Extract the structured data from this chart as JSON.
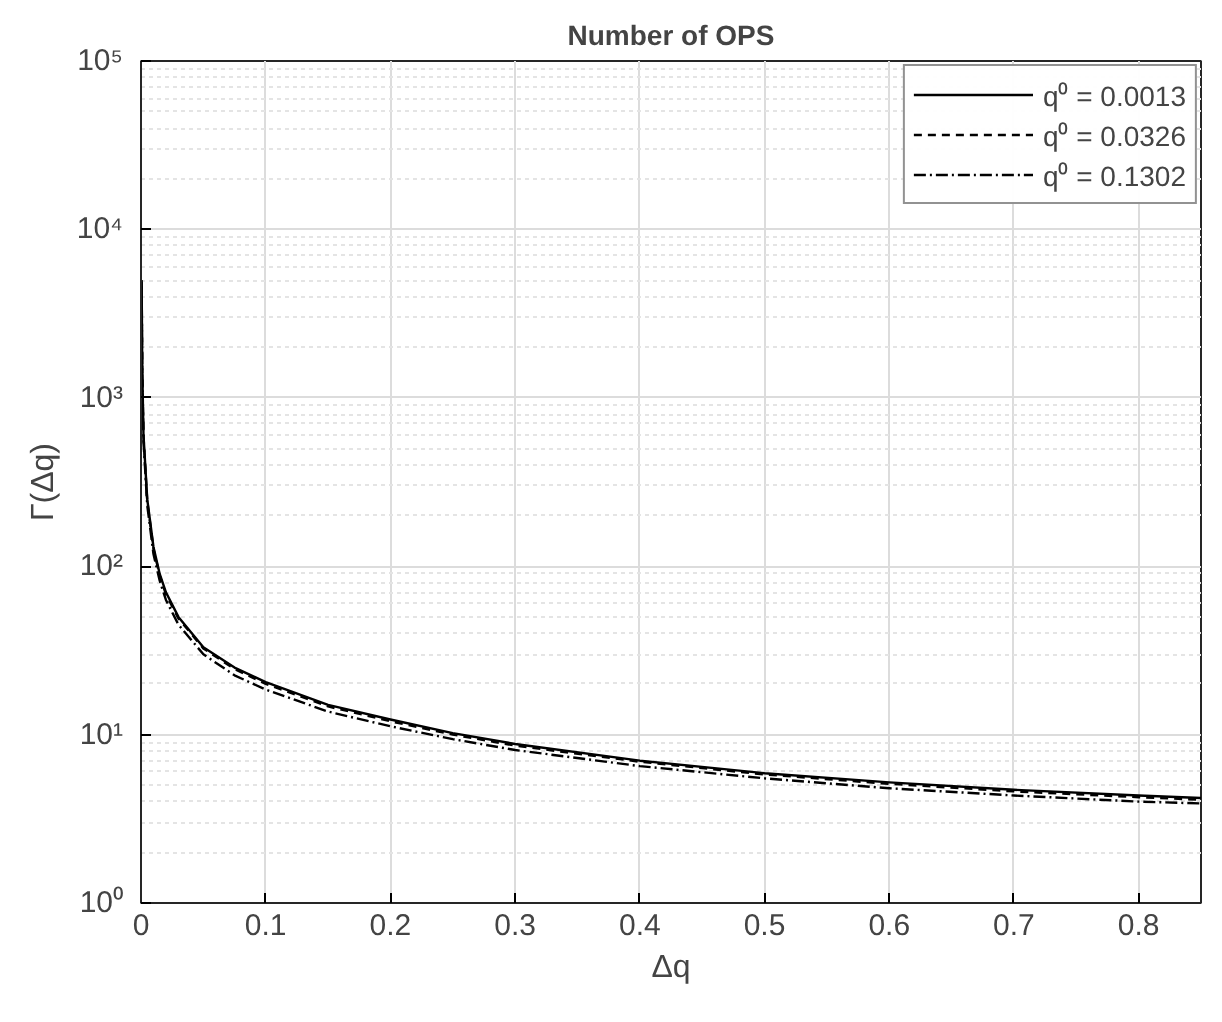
{
  "chart_data": {
    "type": "line",
    "title": "Number of OPS",
    "xlabel": "Δq",
    "ylabel": "Γ(Δq)",
    "xlim": [
      0,
      0.85
    ],
    "xticks": [
      0,
      0.1,
      0.2,
      0.3,
      0.4,
      0.5,
      0.6,
      0.7,
      0.8
    ],
    "ylim": [
      1,
      100000
    ],
    "yticks": [
      {
        "value": 1,
        "label": "10⁰"
      },
      {
        "value": 10,
        "label": "10¹"
      },
      {
        "value": 100,
        "label": "10²"
      },
      {
        "value": 1000,
        "label": "10³"
      },
      {
        "value": 10000,
        "label": "10⁴"
      },
      {
        "value": 100000,
        "label": "10⁵"
      }
    ],
    "log": "y",
    "grid": true,
    "legend": "top right",
    "x": [
      0.0005,
      0.001,
      0.002,
      0.005,
      0.01,
      0.015,
      0.02,
      0.03,
      0.05,
      0.075,
      0.1,
      0.15,
      0.2,
      0.25,
      0.3,
      0.4,
      0.5,
      0.6,
      0.7,
      0.8,
      0.85
    ],
    "series": [
      {
        "name": "q⁰ = 0.0013",
        "color": "#000000",
        "line_style": "solid",
        "values": [
          5000,
          1500,
          600,
          250,
          130,
          90,
          70,
          50,
          33,
          25,
          20.5,
          15,
          12.3,
          10.2,
          8.8,
          7.0,
          5.9,
          5.2,
          4.7,
          4.35,
          4.2
        ]
      },
      {
        "name": "q⁰ = 0.0326",
        "color": "#000000",
        "line_style": "dashed",
        "values": [
          4900,
          1470,
          590,
          245,
          127,
          88,
          68,
          49,
          32.5,
          24.5,
          20,
          14.7,
          12,
          10,
          8.6,
          6.9,
          5.8,
          5.1,
          4.6,
          4.25,
          4.1
        ]
      },
      {
        "name": "q⁰ = 0.1302",
        "color": "#000000",
        "line_style": "dashdot",
        "values": [
          4600,
          1380,
          550,
          230,
          118,
          82,
          63,
          45,
          30,
          22.5,
          18.5,
          13.7,
          11.2,
          9.4,
          8.1,
          6.5,
          5.5,
          4.8,
          4.35,
          4.0,
          3.9
        ]
      }
    ]
  }
}
